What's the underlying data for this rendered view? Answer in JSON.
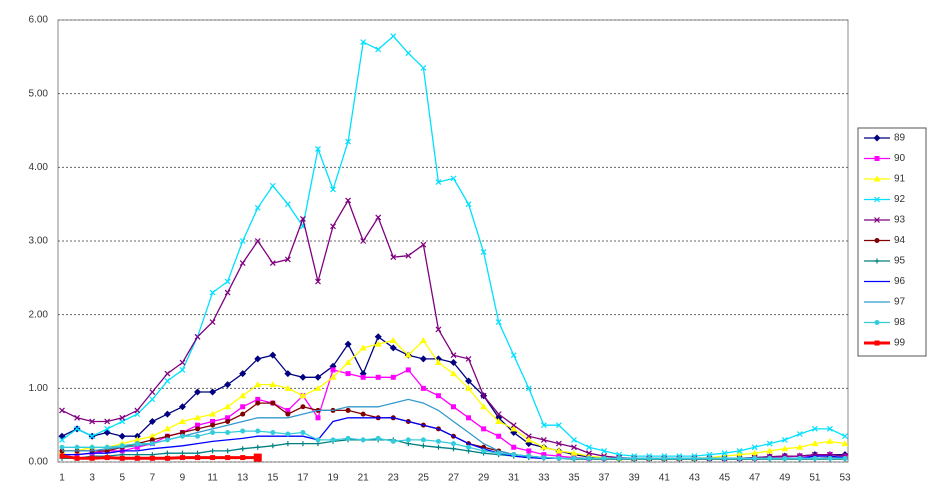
{
  "chart_data": {
    "type": "line",
    "categories": [
      1,
      null,
      3,
      null,
      5,
      null,
      7,
      null,
      9,
      null,
      11,
      null,
      13,
      null,
      15,
      null,
      17,
      null,
      19,
      null,
      21,
      null,
      23,
      null,
      25,
      null,
      27,
      null,
      29,
      null,
      31,
      null,
      33,
      null,
      35,
      null,
      37,
      null,
      39,
      null,
      41,
      null,
      43,
      null,
      45,
      null,
      47,
      null,
      49,
      null,
      51,
      null,
      53
    ],
    "ylim": [
      0,
      6
    ],
    "yticks": [
      {
        "value": 0,
        "label": "0.00"
      },
      {
        "value": 1,
        "label": "1.00"
      },
      {
        "value": 2,
        "label": "2.00"
      },
      {
        "value": 3,
        "label": "3.00"
      },
      {
        "value": 4,
        "label": "4.00"
      },
      {
        "value": 5,
        "label": "5.00"
      },
      {
        "value": 6,
        "label": "6.00"
      }
    ],
    "grid": true,
    "legend": "right",
    "series": [
      {
        "name": "89",
        "color": "#000080",
        "marker": "diamond",
        "values": [
          0.35,
          0.45,
          0.35,
          0.4,
          0.35,
          0.35,
          0.55,
          0.65,
          0.75,
          0.95,
          0.95,
          1.05,
          1.2,
          1.4,
          1.45,
          1.2,
          1.15,
          1.15,
          1.3,
          1.6,
          1.2,
          1.7,
          1.55,
          1.45,
          1.4,
          1.4,
          1.35,
          1.1,
          0.9,
          0.6,
          0.4,
          0.25,
          0.2,
          0.15,
          0.1,
          0.07,
          0.05,
          0.05,
          0.05,
          0.05,
          0.05,
          0.05,
          0.05,
          0.05,
          0.05,
          0.05,
          0.06,
          0.07,
          0.08,
          0.08,
          0.1,
          0.1,
          0.1
        ]
      },
      {
        "name": "90",
        "color": "#ff00ff",
        "marker": "square",
        "values": [
          0.1,
          0.1,
          0.12,
          0.15,
          0.15,
          0.2,
          0.25,
          0.35,
          0.4,
          0.5,
          0.55,
          0.6,
          0.75,
          0.85,
          0.8,
          0.7,
          0.9,
          0.6,
          1.25,
          1.2,
          1.15,
          1.15,
          1.15,
          1.25,
          1.0,
          0.9,
          0.75,
          0.6,
          0.45,
          0.35,
          0.2,
          0.15,
          0.1,
          0.08,
          0.06,
          0.05,
          0.05,
          0.05,
          0.05,
          0.05,
          0.05,
          0.05,
          0.05,
          0.05,
          0.05,
          0.05,
          0.05,
          0.06,
          0.07,
          0.08,
          0.08,
          0.1,
          0.08
        ]
      },
      {
        "name": "91",
        "color": "#ffff00",
        "marker": "triangle",
        "values": [
          0.15,
          0.15,
          0.2,
          0.2,
          0.25,
          0.3,
          0.35,
          0.45,
          0.55,
          0.6,
          0.65,
          0.75,
          0.9,
          1.05,
          1.05,
          1.0,
          0.9,
          1.0,
          1.15,
          1.35,
          1.55,
          1.6,
          1.65,
          1.45,
          1.65,
          1.35,
          1.2,
          1.0,
          0.75,
          0.55,
          0.45,
          0.3,
          0.2,
          0.15,
          0.12,
          0.08,
          0.06,
          0.05,
          0.05,
          0.05,
          0.05,
          0.05,
          0.05,
          0.06,
          0.08,
          0.1,
          0.12,
          0.15,
          0.18,
          0.2,
          0.25,
          0.28,
          0.25
        ]
      },
      {
        "name": "92",
        "color": "#00e0ff",
        "marker": "x",
        "values": [
          0.3,
          0.45,
          0.35,
          0.45,
          0.55,
          0.65,
          0.85,
          1.1,
          1.25,
          1.7,
          2.3,
          2.45,
          3.0,
          3.45,
          3.75,
          3.5,
          3.2,
          4.25,
          3.7,
          4.35,
          5.7,
          5.6,
          5.78,
          5.55,
          5.35,
          3.8,
          3.85,
          3.5,
          2.85,
          1.9,
          1.45,
          1.0,
          0.5,
          0.5,
          0.3,
          0.2,
          0.15,
          0.1,
          0.08,
          0.08,
          0.08,
          0.08,
          0.08,
          0.1,
          0.12,
          0.15,
          0.2,
          0.25,
          0.3,
          0.38,
          0.45,
          0.45,
          0.35
        ]
      },
      {
        "name": "93",
        "color": "#800080",
        "marker": "x",
        "values": [
          0.7,
          0.6,
          0.55,
          0.55,
          0.6,
          0.7,
          0.95,
          1.2,
          1.35,
          1.7,
          1.9,
          2.3,
          2.7,
          3.0,
          2.7,
          2.75,
          3.3,
          2.45,
          3.2,
          3.55,
          3.0,
          3.32,
          2.78,
          2.8,
          2.95,
          1.8,
          1.45,
          1.4,
          0.9,
          0.65,
          0.5,
          0.35,
          0.3,
          0.25,
          0.2,
          0.12,
          0.08,
          0.06,
          0.05,
          0.05,
          0.05,
          0.05,
          0.05,
          0.05,
          0.05,
          0.05,
          0.06,
          0.07,
          0.08,
          0.08,
          0.1,
          0.1,
          0.08
        ]
      },
      {
        "name": "94",
        "color": "#800000",
        "marker": "circle",
        "values": [
          0.15,
          0.15,
          0.15,
          0.15,
          0.2,
          0.25,
          0.3,
          0.35,
          0.4,
          0.45,
          0.5,
          0.55,
          0.65,
          0.8,
          0.8,
          0.65,
          0.75,
          0.7,
          0.7,
          0.7,
          0.65,
          0.6,
          0.6,
          0.55,
          0.5,
          0.45,
          0.35,
          0.25,
          0.2,
          0.15,
          0.1,
          0.08,
          0.06,
          0.05,
          0.05,
          0.05,
          0.05,
          0.05,
          0.05,
          0.05,
          0.05,
          0.05,
          0.05,
          0.05,
          0.05,
          0.05,
          0.05,
          0.05,
          0.05,
          0.05,
          0.05,
          0.06,
          0.05
        ]
      },
      {
        "name": "95",
        "color": "#008080",
        "marker": "plus",
        "values": [
          0.05,
          0.05,
          0.08,
          0.08,
          0.1,
          0.1,
          0.1,
          0.12,
          0.12,
          0.12,
          0.15,
          0.15,
          0.18,
          0.2,
          0.22,
          0.25,
          0.25,
          0.25,
          0.28,
          0.3,
          0.3,
          0.3,
          0.3,
          0.25,
          0.22,
          0.2,
          0.18,
          0.15,
          0.12,
          0.1,
          0.08,
          0.06,
          0.05,
          0.05,
          0.04,
          0.04,
          0.04,
          0.04,
          0.04,
          0.04,
          0.04,
          0.04,
          0.04,
          0.04,
          0.04,
          0.04,
          0.04,
          0.04,
          0.04,
          0.04,
          0.04,
          0.04,
          0.04
        ]
      },
      {
        "name": "96",
        "color": "#0000ff",
        "marker": "none",
        "values": [
          0.1,
          0.1,
          0.12,
          0.12,
          0.15,
          0.15,
          0.18,
          0.2,
          0.22,
          0.25,
          0.28,
          0.3,
          0.32,
          0.35,
          0.35,
          0.35,
          0.35,
          0.3,
          0.55,
          0.6,
          0.6,
          0.6,
          0.6,
          0.55,
          0.5,
          0.45,
          0.35,
          0.25,
          0.18,
          0.12,
          0.08,
          0.06,
          0.05,
          0.05,
          0.05,
          0.05,
          0.05,
          0.05,
          0.05,
          0.05,
          0.05,
          0.05,
          0.05,
          0.05,
          0.05,
          0.05,
          0.05,
          0.05,
          0.05,
          0.05,
          0.08,
          0.08,
          0.06
        ]
      },
      {
        "name": "97",
        "color": "#3399cc",
        "marker": "none",
        "values": [
          0.15,
          0.15,
          0.15,
          0.18,
          0.2,
          0.22,
          0.25,
          0.3,
          0.35,
          0.4,
          0.45,
          0.5,
          0.55,
          0.6,
          0.6,
          0.6,
          0.65,
          0.7,
          0.7,
          0.75,
          0.75,
          0.75,
          0.8,
          0.85,
          0.8,
          0.7,
          0.55,
          0.4,
          0.25,
          0.15,
          0.1,
          0.08,
          0.06,
          0.05,
          0.05,
          0.05,
          0.05,
          0.05,
          0.05,
          0.05,
          0.05,
          0.05,
          0.05,
          0.05,
          0.05,
          0.05,
          0.05,
          0.05,
          0.05,
          0.05,
          0.05,
          0.05,
          0.05
        ]
      },
      {
        "name": "98",
        "color": "#33ccdd",
        "marker": "circle",
        "values": [
          0.2,
          0.2,
          0.2,
          0.2,
          0.22,
          0.25,
          0.25,
          0.3,
          0.35,
          0.35,
          0.4,
          0.4,
          0.42,
          0.42,
          0.4,
          0.38,
          0.4,
          0.3,
          0.3,
          0.32,
          0.3,
          0.32,
          0.28,
          0.3,
          0.3,
          0.28,
          0.25,
          0.2,
          0.15,
          0.12,
          0.1,
          0.08,
          0.06,
          0.05,
          0.05,
          0.05,
          0.05,
          0.05,
          0.05,
          0.05,
          0.05,
          0.05,
          0.05,
          0.05,
          0.05,
          0.05,
          0.05,
          0.05,
          0.05,
          0.05,
          0.05,
          0.05,
          0.05
        ]
      },
      {
        "name": "99",
        "color": "#ff0000",
        "marker": "square",
        "values": [
          0.08,
          0.05,
          0.05,
          0.06,
          0.05,
          0.05,
          0.05,
          0.05,
          0.06,
          0.06,
          0.06,
          0.06,
          0.06,
          0.06,
          null,
          null,
          null,
          null,
          null,
          null,
          null,
          null,
          null,
          null,
          null,
          null,
          null,
          null,
          null,
          null,
          null,
          null,
          null,
          null,
          null,
          null,
          null,
          null,
          null,
          null,
          null,
          null,
          null,
          null,
          null,
          null,
          null,
          null,
          null,
          null,
          null,
          null,
          null
        ]
      }
    ]
  }
}
